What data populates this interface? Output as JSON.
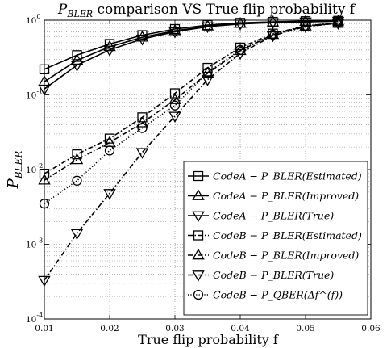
{
  "chart_data": {
    "type": "line",
    "title": "P_BLER comparison VS True flip probability f",
    "xlabel": "True flip probability f",
    "ylabel": "P_BLER",
    "xscale": "linear",
    "yscale": "log",
    "xlim": [
      0.01,
      0.06
    ],
    "ylim": [
      0.0001,
      1
    ],
    "xticks": [
      0.01,
      0.02,
      0.03,
      0.04,
      0.05,
      0.06
    ],
    "xtick_labels": [
      "0.01",
      "0.02",
      "0.03",
      "0.04",
      "0.05",
      "0.06"
    ],
    "ytick_labels": [
      "10",
      "10",
      "10",
      "10",
      "10"
    ],
    "ytick_exponents": [
      "-4",
      "-3",
      "-2",
      "-1",
      "0"
    ],
    "grid": true,
    "legend_position": "bottom-right",
    "series": [
      {
        "name": "CodeA − P_BLER(Estimated)",
        "marker": "square",
        "line": "solid",
        "x": [
          0.01,
          0.015,
          0.02,
          0.025,
          0.03,
          0.035,
          0.04,
          0.045,
          0.05,
          0.055
        ],
        "y": [
          0.22,
          0.34,
          0.48,
          0.63,
          0.76,
          0.86,
          0.92,
          0.95,
          0.97,
          0.98
        ]
      },
      {
        "name": "CodeA − P_BLER(Improved)",
        "marker": "triangle-up",
        "line": "solid",
        "x": [
          0.01,
          0.015,
          0.02,
          0.025,
          0.03,
          0.035,
          0.04,
          0.045,
          0.05,
          0.055
        ],
        "y": [
          0.15,
          0.29,
          0.44,
          0.59,
          0.72,
          0.83,
          0.9,
          0.94,
          0.96,
          0.97
        ]
      },
      {
        "name": "CodeA − P_BLER(True)",
        "marker": "triangle-down",
        "line": "solid",
        "x": [
          0.01,
          0.015,
          0.02,
          0.025,
          0.03,
          0.035,
          0.04,
          0.045,
          0.05,
          0.055
        ],
        "y": [
          0.12,
          0.25,
          0.4,
          0.56,
          0.7,
          0.82,
          0.89,
          0.93,
          0.95,
          0.97
        ]
      },
      {
        "name": "CodeB − P_BLER(Estimated)",
        "marker": "square",
        "line": "dashdot",
        "x": [
          0.01,
          0.015,
          0.02,
          0.025,
          0.03,
          0.035,
          0.04,
          0.045,
          0.05,
          0.055
        ],
        "y": [
          0.0088,
          0.016,
          0.026,
          0.05,
          0.105,
          0.23,
          0.43,
          0.66,
          0.84,
          0.92
        ]
      },
      {
        "name": "CodeB − P_BLER(Improved)",
        "marker": "triangle-up",
        "line": "dashdot",
        "x": [
          0.01,
          0.015,
          0.02,
          0.025,
          0.03,
          0.035,
          0.04,
          0.045,
          0.05,
          0.055
        ],
        "y": [
          0.0072,
          0.0135,
          0.023,
          0.042,
          0.086,
          0.195,
          0.39,
          0.64,
          0.83,
          0.91
        ]
      },
      {
        "name": "CodeB − P_BLER(True)",
        "marker": "triangle-down",
        "line": "dashdot",
        "x": [
          0.01,
          0.015,
          0.02,
          0.025,
          0.03,
          0.035,
          0.04,
          0.045,
          0.05,
          0.055
        ],
        "y": [
          0.00033,
          0.0014,
          0.0048,
          0.017,
          0.052,
          0.16,
          0.36,
          0.62,
          0.82,
          0.91
        ]
      },
      {
        "name": "CodeB − P_QBER(Δf^(f))",
        "marker": "circle",
        "line": "dotted",
        "x": [
          0.01,
          0.015,
          0.02,
          0.025,
          0.03,
          0.035,
          0.04,
          0.045,
          0.05,
          0.055
        ],
        "y": [
          0.0035,
          0.0071,
          0.018,
          0.036,
          0.072,
          0.2,
          0.4,
          0.64,
          0.84,
          0.92
        ]
      }
    ]
  }
}
